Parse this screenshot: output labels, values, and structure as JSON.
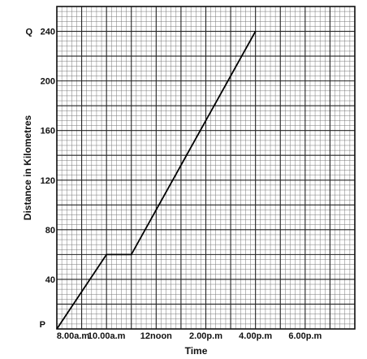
{
  "chart_data": {
    "type": "line",
    "xlabel": "Time",
    "ylabel": "Distance in Kilometres",
    "x_tick_labels": [
      "8.00a.m",
      "10.00a.m",
      "12noon",
      "2.00p.m",
      "4.00p.m",
      "6.00p.m"
    ],
    "x_tick_values": [
      8,
      10,
      12,
      14,
      16,
      18
    ],
    "x_range": [
      8,
      20
    ],
    "y_tick_labels": [
      "40",
      "80",
      "120",
      "160",
      "200",
      "240"
    ],
    "y_tick_values": [
      40,
      80,
      120,
      160,
      200,
      240
    ],
    "y_range": [
      0,
      260
    ],
    "point_labels": [
      {
        "text": "P",
        "x": 8,
        "y": 0
      },
      {
        "text": "Q",
        "x": 16,
        "y": 240
      }
    ],
    "series": [
      {
        "x": [
          8,
          10,
          11,
          16
        ],
        "y": [
          0,
          60,
          60,
          240
        ]
      }
    ],
    "grid": true
  }
}
